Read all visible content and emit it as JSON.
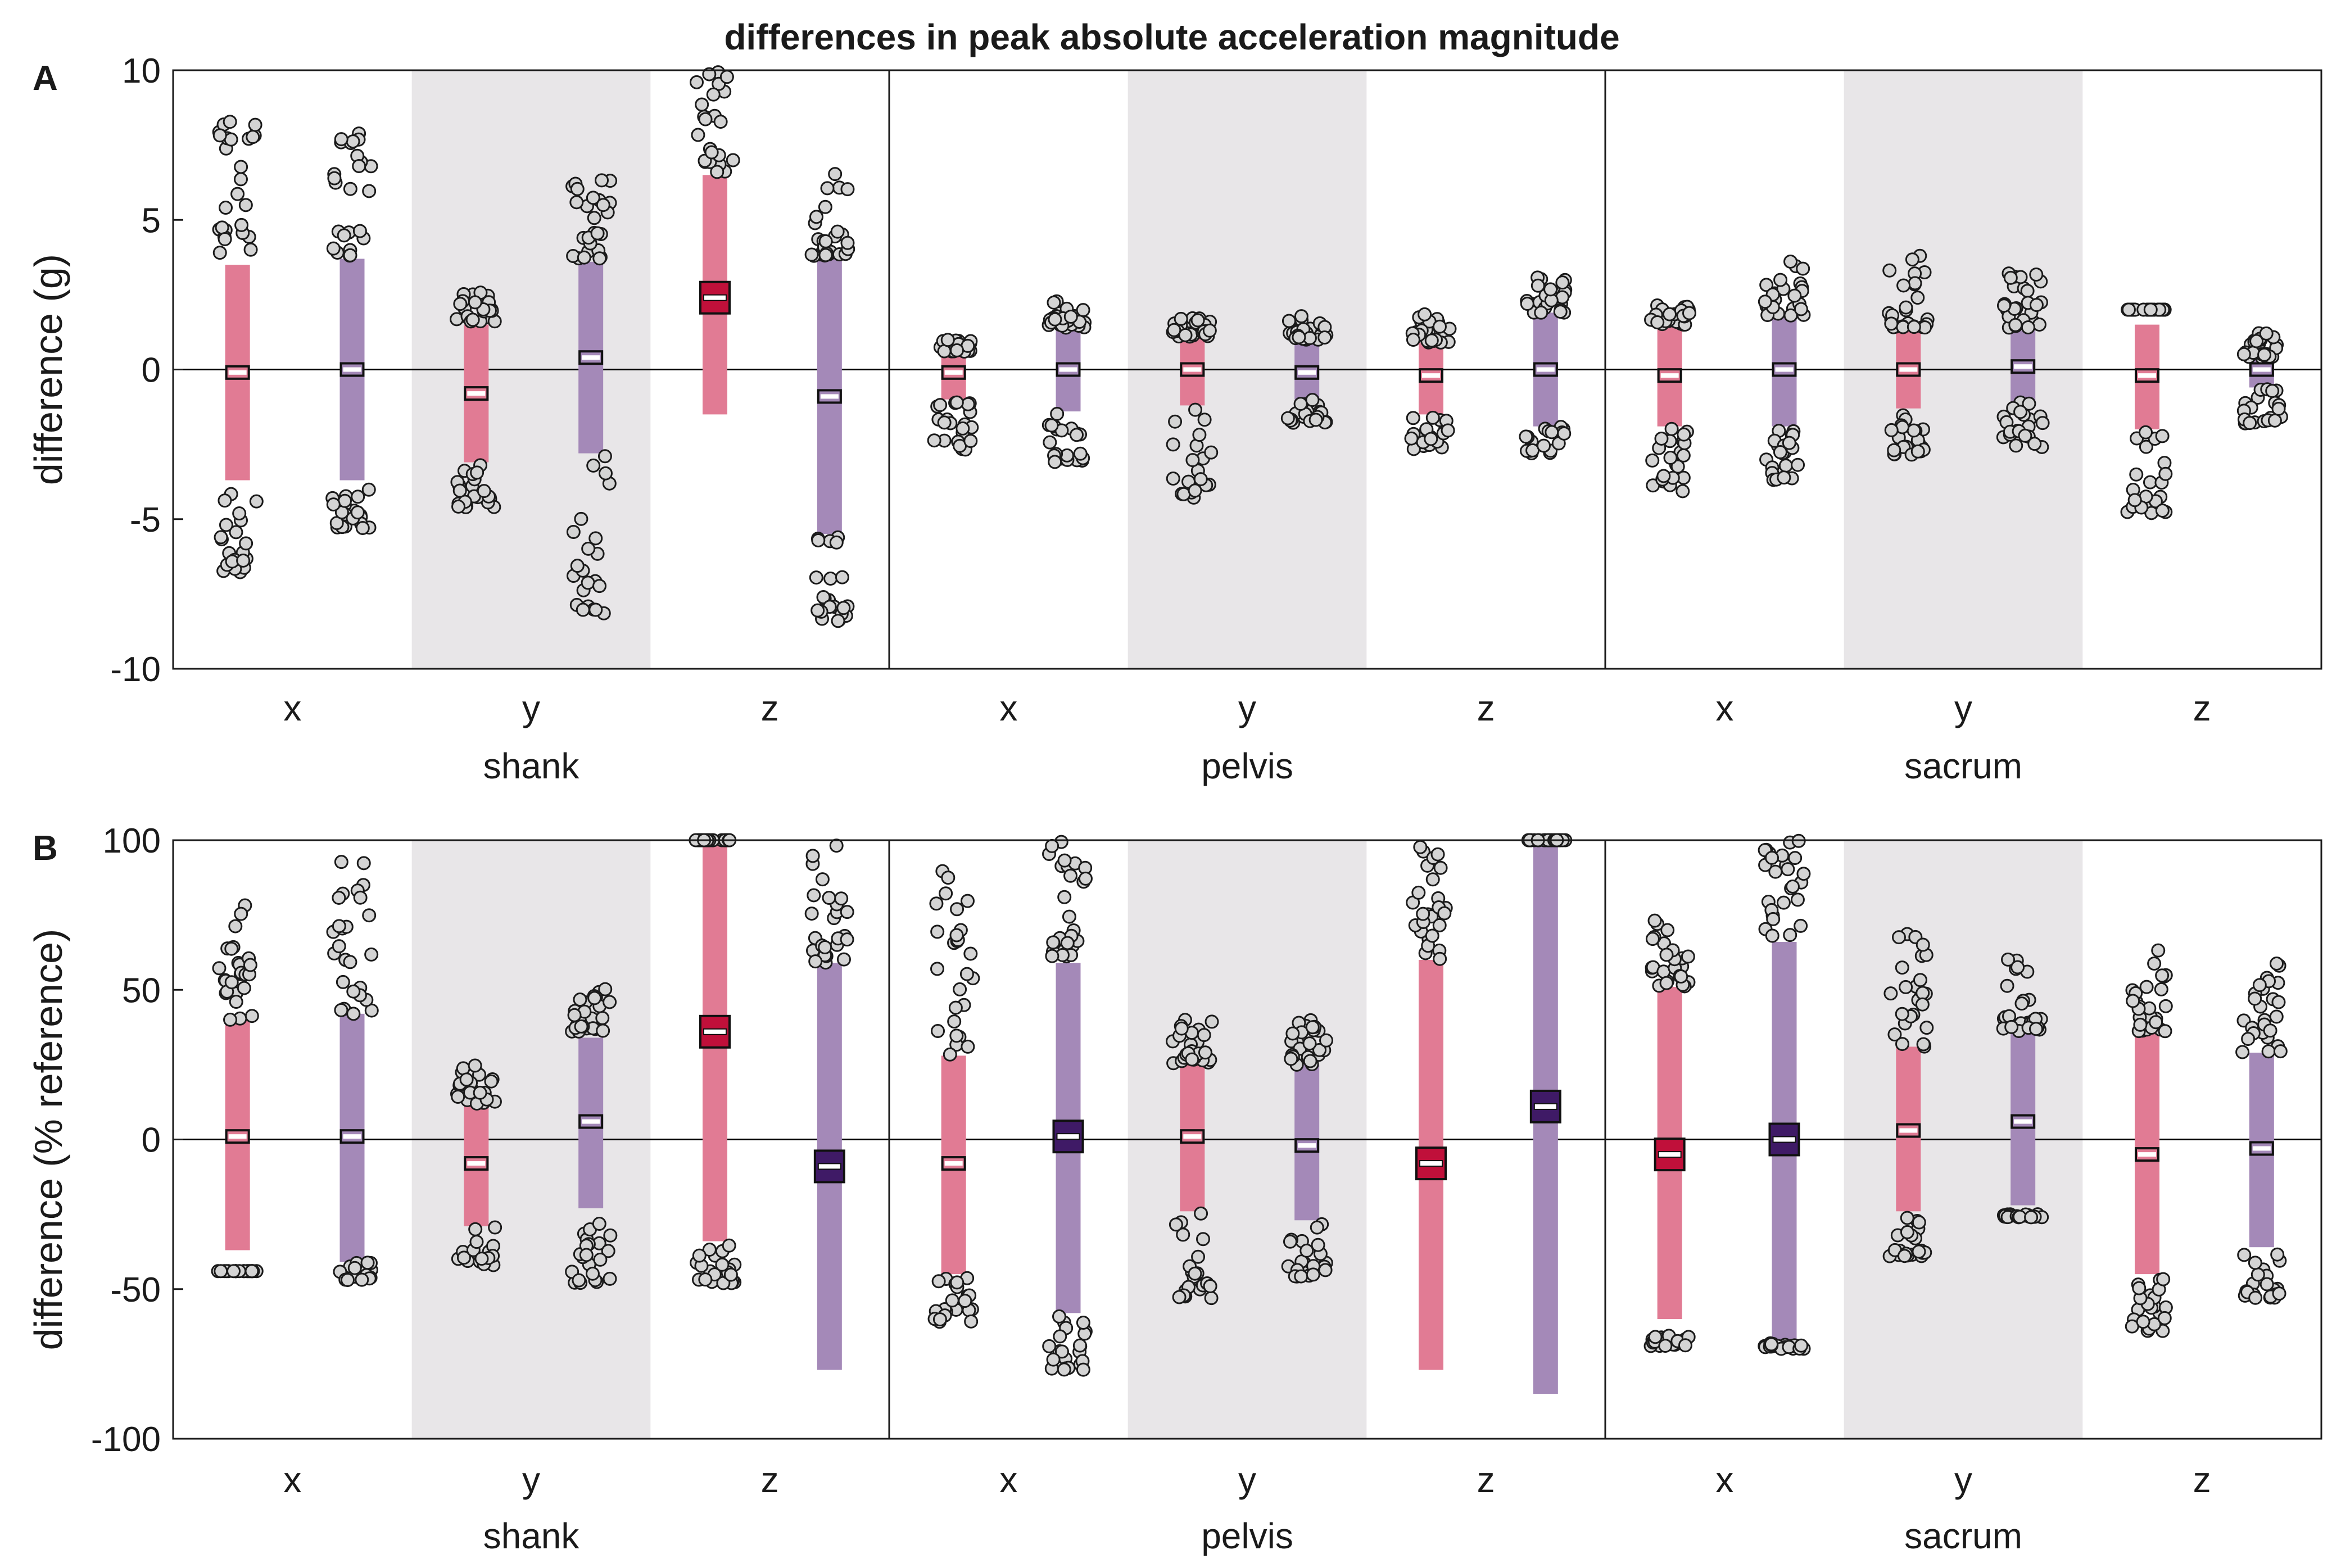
{
  "title": "differences in peak absolute acceleration magnitude",
  "colors": {
    "shank_band": "#e8e6e8",
    "ci_bar_red": "#e17b94",
    "ci_bar_purple": "#a489b8",
    "mean_dark_red": "#c0103a",
    "mean_dark_purple": "#3f1a66",
    "point_fill": "#d4d4d4",
    "zero_line": "#000000"
  },
  "chart_data": [
    {
      "panel": "A",
      "type": "strip-with-error-bars",
      "ylabel": "difference (g)",
      "ylim": [
        -10,
        10
      ],
      "yticks": [
        -10,
        -5,
        0,
        5,
        10
      ],
      "groups": [
        "shank",
        "pelvis",
        "sacrum"
      ],
      "axes": [
        "x",
        "y",
        "z"
      ],
      "series": [
        {
          "group": "shank",
          "axis": "x",
          "color": "red",
          "mean": -0.1,
          "lower": -3.7,
          "upper": 3.5,
          "upper_cluster": [
            3.9,
            8.3
          ],
          "lower_cluster": [
            -6.8,
            -3.9
          ],
          "emphasized": false
        },
        {
          "group": "shank",
          "axis": "x",
          "color": "purple",
          "mean": 0.0,
          "lower": -3.7,
          "upper": 3.7,
          "upper_cluster": [
            3.8,
            8.4
          ],
          "lower_cluster": [
            -5.3,
            -4.0
          ],
          "emphasized": false
        },
        {
          "group": "shank",
          "axis": "y",
          "color": "red",
          "mean": -0.8,
          "lower": -3.1,
          "upper": 1.5,
          "upper_cluster": [
            1.6,
            2.7
          ],
          "lower_cluster": [
            -4.6,
            -3.1
          ],
          "emphasized": false
        },
        {
          "group": "shank",
          "axis": "y",
          "color": "purple",
          "mean": 0.4,
          "lower": -2.8,
          "upper": 3.6,
          "upper_cluster": [
            3.7,
            6.6
          ],
          "lower_cluster": [
            -8.2,
            -2.8
          ],
          "emphasized": false
        },
        {
          "group": "shank",
          "axis": "z",
          "color": "red",
          "mean": 2.4,
          "lower": -1.5,
          "upper": 6.5,
          "upper_cluster": [
            6.6,
            10.0
          ],
          "lower_cluster": [],
          "emphasized": true
        },
        {
          "group": "shank",
          "axis": "z",
          "color": "purple",
          "mean": -0.9,
          "lower": -5.5,
          "upper": 3.7,
          "upper_cluster": [
            3.8,
            6.7
          ],
          "lower_cluster": [
            -8.4,
            -5.5
          ],
          "emphasized": false
        },
        {
          "group": "pelvis",
          "axis": "x",
          "color": "red",
          "mean": -0.1,
          "lower": -1.0,
          "upper": 0.6,
          "upper_cluster": [
            0.6,
            1.0
          ],
          "lower_cluster": [
            -2.7,
            -1.0
          ],
          "emphasized": false
        },
        {
          "group": "pelvis",
          "axis": "x",
          "color": "purple",
          "mean": 0.0,
          "lower": -1.4,
          "upper": 1.4,
          "upper_cluster": [
            1.4,
            2.3
          ],
          "lower_cluster": [
            -3.1,
            -1.4
          ],
          "emphasized": false
        },
        {
          "group": "pelvis",
          "axis": "y",
          "color": "red",
          "mean": 0.0,
          "lower": -1.2,
          "upper": 1.1,
          "upper_cluster": [
            1.1,
            1.8
          ],
          "lower_cluster": [
            -4.4,
            -1.2
          ],
          "emphasized": false
        },
        {
          "group": "pelvis",
          "axis": "y",
          "color": "purple",
          "mean": -0.1,
          "lower": -1.0,
          "upper": 1.0,
          "upper_cluster": [
            1.0,
            1.8
          ],
          "lower_cluster": [
            -1.8,
            -1.0
          ],
          "emphasized": false
        },
        {
          "group": "pelvis",
          "axis": "z",
          "color": "red",
          "mean": -0.2,
          "lower": -1.5,
          "upper": 0.9,
          "upper_cluster": [
            0.9,
            1.9
          ],
          "lower_cluster": [
            -2.7,
            -1.5
          ],
          "emphasized": false
        },
        {
          "group": "pelvis",
          "axis": "z",
          "color": "purple",
          "mean": 0.0,
          "lower": -1.9,
          "upper": 1.9,
          "upper_cluster": [
            1.9,
            3.1
          ],
          "lower_cluster": [
            -2.8,
            -1.9
          ],
          "emphasized": false
        },
        {
          "group": "sacrum",
          "axis": "x",
          "color": "red",
          "mean": -0.2,
          "lower": -1.9,
          "upper": 1.5,
          "upper_cluster": [
            1.5,
            2.2
          ],
          "lower_cluster": [
            -4.1,
            -1.9
          ],
          "emphasized": false
        },
        {
          "group": "sacrum",
          "axis": "x",
          "color": "purple",
          "mean": 0.0,
          "lower": -1.9,
          "upper": 1.8,
          "upper_cluster": [
            1.8,
            3.9
          ],
          "lower_cluster": [
            -3.7,
            -1.9
          ],
          "emphasized": false
        },
        {
          "group": "sacrum",
          "axis": "y",
          "color": "red",
          "mean": 0.0,
          "lower": -1.3,
          "upper": 1.4,
          "upper_cluster": [
            1.4,
            3.8
          ],
          "lower_cluster": [
            -2.9,
            -1.3
          ],
          "emphasized": false
        },
        {
          "group": "sacrum",
          "axis": "y",
          "color": "purple",
          "mean": 0.1,
          "lower": -1.1,
          "upper": 1.3,
          "upper_cluster": [
            1.4,
            3.3
          ],
          "lower_cluster": [
            -2.6,
            -1.1
          ],
          "emphasized": false
        },
        {
          "group": "sacrum",
          "axis": "z",
          "color": "red",
          "mean": -0.2,
          "lower": -2.0,
          "upper": 1.5,
          "upper_cluster": [
            2.0,
            2.0
          ],
          "lower_cluster": [
            -4.8,
            -2.0
          ],
          "emphasized": false
        },
        {
          "group": "sacrum",
          "axis": "z",
          "color": "purple",
          "mean": 0.0,
          "lower": -0.6,
          "upper": 0.4,
          "upper_cluster": [
            0.4,
            1.3
          ],
          "lower_cluster": [
            -1.8,
            -0.6
          ],
          "emphasized": false
        }
      ]
    },
    {
      "panel": "B",
      "type": "strip-with-error-bars",
      "ylabel": "difference (% reference)",
      "ylim": [
        -100,
        100
      ],
      "yticks": [
        -100,
        -50,
        0,
        50,
        100
      ],
      "groups": [
        "shank",
        "pelvis",
        "sacrum"
      ],
      "axes": [
        "x",
        "y",
        "z"
      ],
      "series": [
        {
          "group": "shank",
          "axis": "x",
          "color": "red",
          "mean": 1,
          "lower": -37,
          "upper": 40,
          "upper_cluster": [
            40,
            82
          ],
          "lower_cluster": [
            -44,
            -44
          ],
          "emphasized": false
        },
        {
          "group": "shank",
          "axis": "x",
          "color": "purple",
          "mean": 1,
          "lower": -41,
          "upper": 42,
          "upper_cluster": [
            42,
            95
          ],
          "lower_cluster": [
            -47,
            -41
          ],
          "emphasized": false
        },
        {
          "group": "shank",
          "axis": "y",
          "color": "red",
          "mean": -8,
          "lower": -29,
          "upper": 12,
          "upper_cluster": [
            12,
            26
          ],
          "lower_cluster": [
            -42,
            -29
          ],
          "emphasized": false
        },
        {
          "group": "shank",
          "axis": "y",
          "color": "purple",
          "mean": 6,
          "lower": -23,
          "upper": 34,
          "upper_cluster": [
            36,
            51
          ],
          "lower_cluster": [
            -48,
            -23
          ],
          "emphasized": false
        },
        {
          "group": "shank",
          "axis": "z",
          "color": "red",
          "mean": 36,
          "lower": -34,
          "upper": 100,
          "upper_cluster": [
            100,
            100
          ],
          "lower_cluster": [
            -48,
            -34
          ],
          "emphasized": true
        },
        {
          "group": "shank",
          "axis": "z",
          "color": "purple",
          "mean": -9,
          "lower": -77,
          "upper": 59,
          "upper_cluster": [
            59,
            100
          ],
          "lower_cluster": [],
          "emphasized": true
        },
        {
          "group": "pelvis",
          "axis": "x",
          "color": "red",
          "mean": -8,
          "lower": -45,
          "upper": 28,
          "upper_cluster": [
            28,
            95
          ],
          "lower_cluster": [
            -61,
            -45
          ],
          "emphasized": false
        },
        {
          "group": "pelvis",
          "axis": "x",
          "color": "purple",
          "mean": 1,
          "lower": -58,
          "upper": 59,
          "upper_cluster": [
            61,
            100
          ],
          "lower_cluster": [
            -77,
            -59
          ],
          "emphasized": true
        },
        {
          "group": "pelvis",
          "axis": "y",
          "color": "red",
          "mean": 1,
          "lower": -24,
          "upper": 25,
          "upper_cluster": [
            25,
            41
          ],
          "lower_cluster": [
            -53,
            -24
          ],
          "emphasized": false
        },
        {
          "group": "pelvis",
          "axis": "y",
          "color": "purple",
          "mean": -2,
          "lower": -27,
          "upper": 25,
          "upper_cluster": [
            25,
            40
          ],
          "lower_cluster": [
            -46,
            -27
          ],
          "emphasized": false
        },
        {
          "group": "pelvis",
          "axis": "z",
          "color": "red",
          "mean": -8,
          "lower": -77,
          "upper": 60,
          "upper_cluster": [
            60,
            100
          ],
          "lower_cluster": [],
          "emphasized": true
        },
        {
          "group": "pelvis",
          "axis": "z",
          "color": "purple",
          "mean": 11,
          "lower": -85,
          "upper": 100,
          "upper_cluster": [
            100,
            100
          ],
          "lower_cluster": [],
          "emphasized": true
        },
        {
          "group": "sacrum",
          "axis": "x",
          "color": "red",
          "mean": -5,
          "lower": -60,
          "upper": 51,
          "upper_cluster": [
            51,
            77
          ],
          "lower_cluster": [
            -69,
            -65
          ],
          "emphasized": true
        },
        {
          "group": "sacrum",
          "axis": "x",
          "color": "purple",
          "mean": 0,
          "lower": -67,
          "upper": 66,
          "upper_cluster": [
            67,
            100
          ],
          "lower_cluster": [
            -70,
            -68
          ],
          "emphasized": true
        },
        {
          "group": "sacrum",
          "axis": "y",
          "color": "red",
          "mean": 3,
          "lower": -24,
          "upper": 31,
          "upper_cluster": [
            31,
            69
          ],
          "lower_cluster": [
            -39,
            -25
          ],
          "emphasized": false
        },
        {
          "group": "sacrum",
          "axis": "y",
          "color": "purple",
          "mean": 6,
          "lower": -22,
          "upper": 36,
          "upper_cluster": [
            36,
            63
          ],
          "lower_cluster": [
            -26,
            -25
          ],
          "emphasized": false
        },
        {
          "group": "sacrum",
          "axis": "z",
          "color": "red",
          "mean": -5,
          "lower": -45,
          "upper": 36,
          "upper_cluster": [
            36,
            64
          ],
          "lower_cluster": [
            -64,
            -46
          ],
          "emphasized": false
        },
        {
          "group": "sacrum",
          "axis": "z",
          "color": "purple",
          "mean": -3,
          "lower": -36,
          "upper": 29,
          "upper_cluster": [
            29,
            60
          ],
          "lower_cluster": [
            -53,
            -36
          ],
          "emphasized": false
        }
      ]
    }
  ]
}
